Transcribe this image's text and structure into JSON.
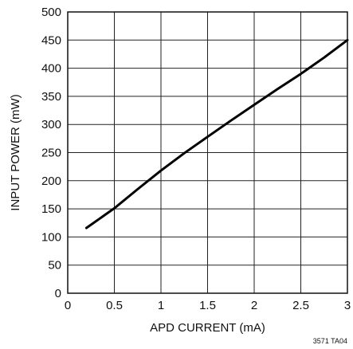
{
  "chart_data": {
    "type": "line",
    "title": "",
    "xlabel": "APD CURRENT (mA)",
    "ylabel": "INPUT POWER (mW)",
    "xlim": [
      0,
      3
    ],
    "ylim": [
      0,
      500
    ],
    "x_ticks": [
      "0",
      "0.5",
      "1",
      "1.5",
      "2",
      "2.5",
      "3"
    ],
    "y_ticks": [
      "0",
      "50",
      "100",
      "150",
      "200",
      "250",
      "300",
      "350",
      "400",
      "450",
      "500"
    ],
    "grid": true,
    "series": [
      {
        "x": [
          0.2,
          0.5,
          0.75,
          1.0,
          1.25,
          1.5,
          1.75,
          2.0,
          2.25,
          2.5,
          2.75,
          3.0
        ],
        "y": [
          116,
          151,
          185,
          218,
          249,
          278,
          307,
          335,
          363,
          390,
          419,
          450
        ],
        "color": "#000000"
      }
    ]
  },
  "footnote": "3571 TA04"
}
